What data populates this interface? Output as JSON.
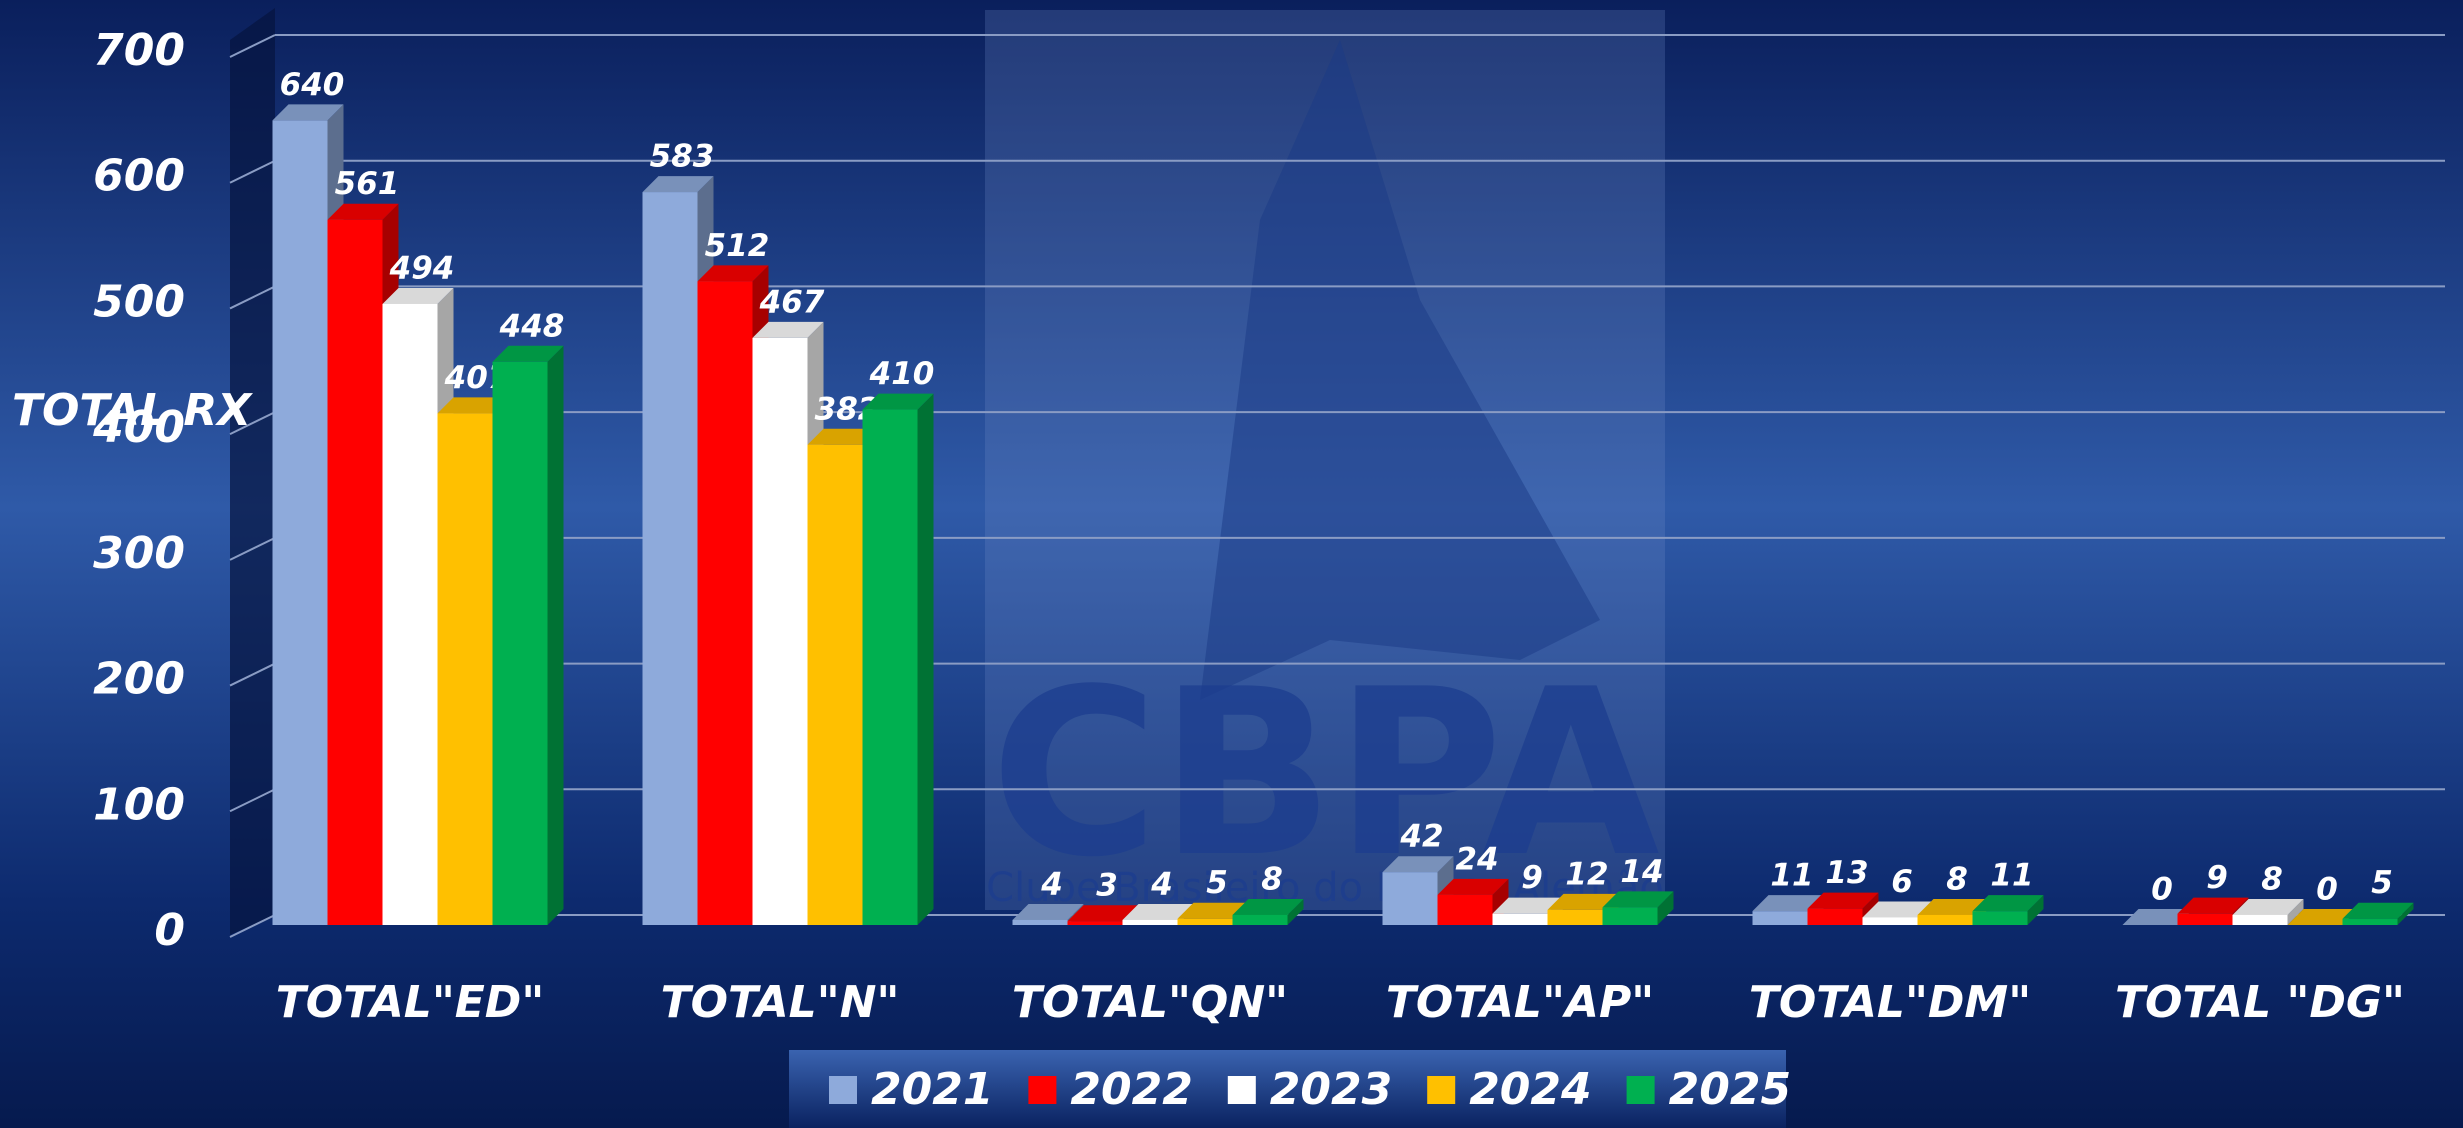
{
  "chart_data": {
    "type": "bar3d",
    "y_label": "TOTAL RX",
    "categories": [
      "TOTAL\"ED\"",
      "TOTAL\"N\"",
      "TOTAL\"QN\"",
      "TOTAL\"AP\"",
      "TOTAL\"DM\"",
      "TOTAL \"DG\""
    ],
    "series": [
      {
        "name": "2021",
        "color": "#8eaadb",
        "values": [
          640,
          583,
          4,
          42,
          11,
          0
        ]
      },
      {
        "name": "2022",
        "color": "#ff0000",
        "values": [
          561,
          512,
          3,
          24,
          13,
          9
        ]
      },
      {
        "name": "2023",
        "color": "#ffffff",
        "values": [
          494,
          467,
          4,
          9,
          6,
          8
        ]
      },
      {
        "name": "2024",
        "color": "#ffc000",
        "values": [
          407,
          382,
          5,
          12,
          8,
          0
        ]
      },
      {
        "name": "2025",
        "color": "#00b050",
        "values": [
          448,
          410,
          8,
          14,
          11,
          5
        ]
      }
    ],
    "ylim": [
      0,
      700
    ],
    "yticks": [
      0,
      100,
      200,
      300,
      400,
      500,
      600,
      700
    ],
    "grid": true,
    "legend": "bottom"
  },
  "watermark": {
    "title": "CBPA",
    "subtitle": "Clube Brasileiro do Pastor Alemão"
  }
}
